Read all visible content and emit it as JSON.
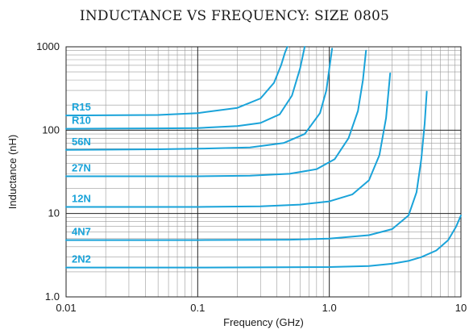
{
  "chart_data": {
    "type": "line",
    "title": "INDUCTANCE VS FREQUENCY: SIZE 0805",
    "xlabel": "Frequency (GHz)",
    "ylabel": "Inductance (nH)",
    "x_scale": "log",
    "y_scale": "log",
    "xlim": [
      0.01,
      10
    ],
    "ylim": [
      1,
      1000
    ],
    "x_ticks": [
      {
        "value": 0.01,
        "label": "0.01"
      },
      {
        "value": 0.1,
        "label": "0.1"
      },
      {
        "value": 1,
        "label": "1.0"
      },
      {
        "value": 10,
        "label": "10"
      }
    ],
    "y_ticks": [
      {
        "value": 1,
        "label": "1.0"
      },
      {
        "value": 10,
        "label": "10"
      },
      {
        "value": 100,
        "label": "100"
      },
      {
        "value": 1000,
        "label": "1000"
      }
    ],
    "grid": true,
    "series_color": "#1aa3d9",
    "series": [
      {
        "name": "R15",
        "x": [
          0.01,
          0.05,
          0.1,
          0.2,
          0.3,
          0.38,
          0.43,
          0.46,
          0.48
        ],
        "y": [
          150,
          152,
          160,
          185,
          240,
          370,
          600,
          850,
          1000
        ]
      },
      {
        "name": "R10",
        "x": [
          0.01,
          0.05,
          0.1,
          0.2,
          0.3,
          0.42,
          0.52,
          0.6,
          0.65
        ],
        "y": [
          104,
          105,
          106,
          112,
          122,
          155,
          260,
          550,
          1000
        ]
      },
      {
        "name": "56N",
        "x": [
          0.01,
          0.05,
          0.1,
          0.25,
          0.45,
          0.65,
          0.85,
          0.95,
          1.0,
          1.05
        ],
        "y": [
          58,
          59,
          60,
          62,
          70,
          90,
          160,
          300,
          550,
          950
        ]
      },
      {
        "name": "27N",
        "x": [
          0.01,
          0.1,
          0.25,
          0.5,
          0.8,
          1.1,
          1.4,
          1.65,
          1.8,
          1.9
        ],
        "y": [
          28,
          28,
          28.5,
          30,
          34,
          45,
          80,
          170,
          400,
          900
        ]
      },
      {
        "name": "12N",
        "x": [
          0.01,
          0.1,
          0.3,
          0.6,
          1.0,
          1.5,
          2.0,
          2.4,
          2.7,
          2.9
        ],
        "y": [
          12,
          12,
          12.2,
          12.8,
          14,
          17,
          25,
          50,
          140,
          480
        ]
      },
      {
        "name": "4N7",
        "x": [
          0.01,
          0.1,
          0.5,
          1.0,
          2.0,
          3.0,
          4.0,
          4.6,
          5.0,
          5.3,
          5.5
        ],
        "y": [
          4.8,
          4.8,
          4.85,
          5.0,
          5.5,
          6.5,
          9.5,
          18,
          45,
          120,
          290
        ]
      },
      {
        "name": "2N2",
        "x": [
          0.01,
          0.1,
          1.0,
          2.0,
          3.0,
          4.0,
          5.0,
          6.5,
          8.0,
          9.2,
          10
        ],
        "y": [
          2.25,
          2.25,
          2.28,
          2.35,
          2.5,
          2.7,
          3.0,
          3.6,
          4.8,
          7.0,
          9.5
        ]
      }
    ]
  }
}
